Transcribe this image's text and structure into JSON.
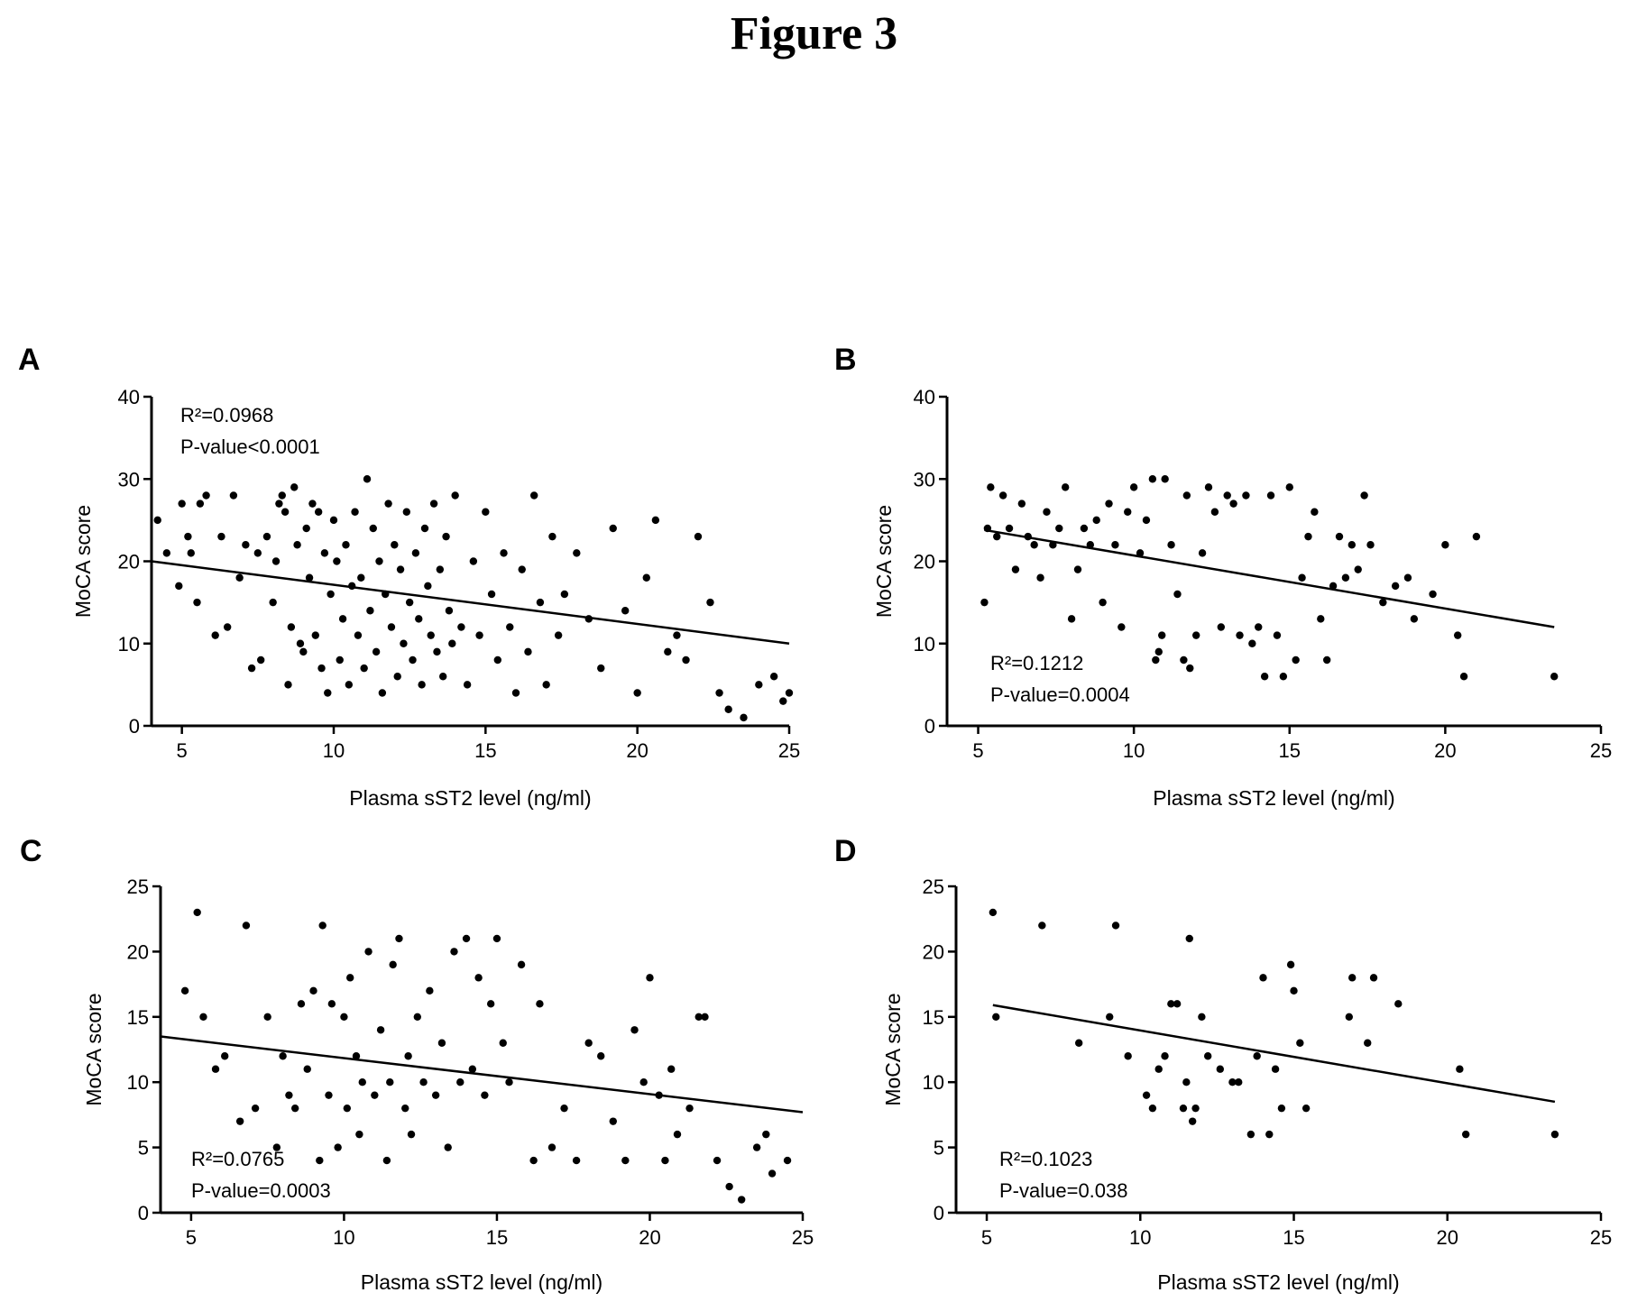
{
  "figure_title": "Figure 3",
  "chart_data": [
    {
      "type": "scatter",
      "panel": "A",
      "xlabel": "Plasma sST2 level (ng/ml)",
      "ylabel": "MoCA score",
      "xlim": [
        4,
        25
      ],
      "ylim": [
        0,
        40
      ],
      "xticks": [
        "5",
        "10",
        "15",
        "20",
        "25"
      ],
      "yticks": [
        "0",
        "10",
        "20",
        "30",
        "40"
      ],
      "annotation": [
        "R²=0.0968",
        "P-value<0.0001"
      ],
      "annotation_position": "top-left",
      "regression": {
        "x": [
          4,
          25
        ],
        "y": [
          20,
          10
        ]
      },
      "points": [
        [
          4.2,
          25
        ],
        [
          4.5,
          21
        ],
        [
          4.9,
          17
        ],
        [
          5.0,
          27
        ],
        [
          5.2,
          23
        ],
        [
          5.3,
          21
        ],
        [
          5.5,
          15
        ],
        [
          5.6,
          27
        ],
        [
          5.8,
          28
        ],
        [
          6.1,
          11
        ],
        [
          6.3,
          23
        ],
        [
          6.5,
          12
        ],
        [
          6.7,
          28
        ],
        [
          6.9,
          18
        ],
        [
          7.1,
          22
        ],
        [
          7.3,
          7
        ],
        [
          7.5,
          21
        ],
        [
          7.6,
          8
        ],
        [
          7.8,
          23
        ],
        [
          8.0,
          15
        ],
        [
          8.1,
          20
        ],
        [
          8.2,
          27
        ],
        [
          8.3,
          28
        ],
        [
          8.4,
          26
        ],
        [
          8.5,
          5
        ],
        [
          8.6,
          12
        ],
        [
          8.7,
          29
        ],
        [
          8.8,
          22
        ],
        [
          8.9,
          10
        ],
        [
          9.0,
          9
        ],
        [
          9.1,
          24
        ],
        [
          9.2,
          18
        ],
        [
          9.3,
          27
        ],
        [
          9.4,
          11
        ],
        [
          9.5,
          26
        ],
        [
          9.6,
          7
        ],
        [
          9.7,
          21
        ],
        [
          9.8,
          4
        ],
        [
          9.9,
          16
        ],
        [
          10.0,
          25
        ],
        [
          10.1,
          20
        ],
        [
          10.2,
          8
        ],
        [
          10.3,
          13
        ],
        [
          10.4,
          22
        ],
        [
          10.5,
          5
        ],
        [
          10.6,
          17
        ],
        [
          10.7,
          26
        ],
        [
          10.8,
          11
        ],
        [
          10.9,
          18
        ],
        [
          11.0,
          7
        ],
        [
          11.1,
          30
        ],
        [
          11.2,
          14
        ],
        [
          11.3,
          24
        ],
        [
          11.4,
          9
        ],
        [
          11.5,
          20
        ],
        [
          11.6,
          4
        ],
        [
          11.7,
          16
        ],
        [
          11.8,
          27
        ],
        [
          11.9,
          12
        ],
        [
          12.0,
          22
        ],
        [
          12.1,
          6
        ],
        [
          12.2,
          19
        ],
        [
          12.3,
          10
        ],
        [
          12.4,
          26
        ],
        [
          12.5,
          15
        ],
        [
          12.6,
          8
        ],
        [
          12.7,
          21
        ],
        [
          12.8,
          13
        ],
        [
          12.9,
          5
        ],
        [
          13.0,
          24
        ],
        [
          13.1,
          17
        ],
        [
          13.2,
          11
        ],
        [
          13.3,
          27
        ],
        [
          13.4,
          9
        ],
        [
          13.5,
          19
        ],
        [
          13.6,
          6
        ],
        [
          13.7,
          23
        ],
        [
          13.8,
          14
        ],
        [
          13.9,
          10
        ],
        [
          14.0,
          28
        ],
        [
          14.2,
          12
        ],
        [
          14.4,
          5
        ],
        [
          14.6,
          20
        ],
        [
          14.8,
          11
        ],
        [
          15.0,
          26
        ],
        [
          15.2,
          16
        ],
        [
          15.4,
          8
        ],
        [
          15.6,
          21
        ],
        [
          15.8,
          12
        ],
        [
          16.0,
          4
        ],
        [
          16.2,
          19
        ],
        [
          16.4,
          9
        ],
        [
          16.6,
          28
        ],
        [
          16.8,
          15
        ],
        [
          17.0,
          5
        ],
        [
          17.2,
          23
        ],
        [
          17.4,
          11
        ],
        [
          17.6,
          16
        ],
        [
          18.0,
          21
        ],
        [
          18.4,
          13
        ],
        [
          18.8,
          7
        ],
        [
          19.2,
          24
        ],
        [
          19.6,
          14
        ],
        [
          20.0,
          4
        ],
        [
          20.3,
          18
        ],
        [
          20.6,
          25
        ],
        [
          21.0,
          9
        ],
        [
          21.3,
          11
        ],
        [
          21.6,
          8
        ],
        [
          22.0,
          23
        ],
        [
          22.4,
          15
        ],
        [
          22.7,
          4
        ],
        [
          23.0,
          2
        ],
        [
          23.5,
          1
        ],
        [
          24.0,
          5
        ],
        [
          24.5,
          6
        ],
        [
          24.8,
          3
        ],
        [
          25.0,
          4
        ]
      ]
    },
    {
      "type": "scatter",
      "panel": "B",
      "xlabel": "Plasma sST2 level (ng/ml)",
      "ylabel": "MoCA score",
      "xlim": [
        4,
        25
      ],
      "ylim": [
        0,
        40
      ],
      "xticks": [
        "5",
        "10",
        "15",
        "20",
        "25"
      ],
      "yticks": [
        "0",
        "10",
        "20",
        "30",
        "40"
      ],
      "annotation": [
        "R²=0.1212",
        "P-value=0.0004"
      ],
      "annotation_position": "bottom-left",
      "regression": {
        "x": [
          5.2,
          23.5
        ],
        "y": [
          23.8,
          12
        ]
      },
      "points": [
        [
          5.2,
          15
        ],
        [
          5.3,
          24
        ],
        [
          5.4,
          29
        ],
        [
          5.6,
          23
        ],
        [
          5.8,
          28
        ],
        [
          6.0,
          24
        ],
        [
          6.2,
          19
        ],
        [
          6.4,
          27
        ],
        [
          6.6,
          23
        ],
        [
          6.8,
          22
        ],
        [
          7.0,
          18
        ],
        [
          7.2,
          26
        ],
        [
          7.4,
          22
        ],
        [
          7.6,
          24
        ],
        [
          7.8,
          29
        ],
        [
          8.0,
          13
        ],
        [
          8.2,
          19
        ],
        [
          8.4,
          24
        ],
        [
          8.6,
          22
        ],
        [
          8.8,
          25
        ],
        [
          9.0,
          15
        ],
        [
          9.2,
          27
        ],
        [
          9.4,
          22
        ],
        [
          9.6,
          12
        ],
        [
          9.8,
          26
        ],
        [
          10.0,
          29
        ],
        [
          10.2,
          21
        ],
        [
          10.4,
          25
        ],
        [
          10.6,
          30
        ],
        [
          10.7,
          8
        ],
        [
          10.8,
          9
        ],
        [
          10.9,
          11
        ],
        [
          11.0,
          30
        ],
        [
          11.2,
          22
        ],
        [
          11.4,
          16
        ],
        [
          11.6,
          8
        ],
        [
          11.7,
          28
        ],
        [
          11.8,
          7
        ],
        [
          12.0,
          11
        ],
        [
          12.2,
          21
        ],
        [
          12.4,
          29
        ],
        [
          12.6,
          26
        ],
        [
          12.8,
          12
        ],
        [
          13.0,
          28
        ],
        [
          13.2,
          27
        ],
        [
          13.4,
          11
        ],
        [
          13.6,
          28
        ],
        [
          13.8,
          10
        ],
        [
          14.0,
          12
        ],
        [
          14.2,
          6
        ],
        [
          14.4,
          28
        ],
        [
          14.6,
          11
        ],
        [
          14.8,
          6
        ],
        [
          15.0,
          29
        ],
        [
          15.2,
          8
        ],
        [
          15.4,
          18
        ],
        [
          15.6,
          23
        ],
        [
          15.8,
          26
        ],
        [
          16.0,
          13
        ],
        [
          16.2,
          8
        ],
        [
          16.4,
          17
        ],
        [
          16.6,
          23
        ],
        [
          16.8,
          18
        ],
        [
          17.0,
          22
        ],
        [
          17.2,
          19
        ],
        [
          17.4,
          28
        ],
        [
          17.6,
          22
        ],
        [
          18.0,
          15
        ],
        [
          18.4,
          17
        ],
        [
          18.8,
          18
        ],
        [
          19.0,
          13
        ],
        [
          19.6,
          16
        ],
        [
          20.0,
          22
        ],
        [
          20.4,
          11
        ],
        [
          20.6,
          6
        ],
        [
          21.0,
          23
        ],
        [
          23.5,
          6
        ]
      ]
    },
    {
      "type": "scatter",
      "panel": "C",
      "xlabel": "Plasma sST2 level (ng/ml)",
      "ylabel": "MoCA score",
      "xlim": [
        4,
        25
      ],
      "ylim": [
        0,
        25
      ],
      "xticks": [
        "5",
        "10",
        "15",
        "20",
        "25"
      ],
      "yticks": [
        "0",
        "5",
        "10",
        "15",
        "20",
        "25"
      ],
      "annotation": [
        "R²=0.0765",
        "P-value=0.0003"
      ],
      "annotation_position": "bottom-left",
      "regression": {
        "x": [
          4,
          25
        ],
        "y": [
          13.5,
          7.7
        ]
      },
      "points": [
        [
          4.8,
          17
        ],
        [
          5.2,
          23
        ],
        [
          5.4,
          15
        ],
        [
          5.8,
          11
        ],
        [
          6.1,
          12
        ],
        [
          6.6,
          7
        ],
        [
          6.8,
          22
        ],
        [
          7.1,
          8
        ],
        [
          7.5,
          15
        ],
        [
          7.8,
          5
        ],
        [
          8.0,
          12
        ],
        [
          8.2,
          9
        ],
        [
          8.4,
          8
        ],
        [
          8.6,
          16
        ],
        [
          8.8,
          11
        ],
        [
          9.0,
          17
        ],
        [
          9.2,
          4
        ],
        [
          9.3,
          22
        ],
        [
          9.5,
          9
        ],
        [
          9.6,
          16
        ],
        [
          9.8,
          5
        ],
        [
          10.0,
          15
        ],
        [
          10.1,
          8
        ],
        [
          10.2,
          18
        ],
        [
          10.4,
          12
        ],
        [
          10.5,
          6
        ],
        [
          10.6,
          10
        ],
        [
          10.8,
          20
        ],
        [
          11.0,
          9
        ],
        [
          11.2,
          14
        ],
        [
          11.4,
          4
        ],
        [
          11.5,
          10
        ],
        [
          11.6,
          19
        ],
        [
          11.8,
          21
        ],
        [
          12.0,
          8
        ],
        [
          12.1,
          12
        ],
        [
          12.2,
          6
        ],
        [
          12.4,
          15
        ],
        [
          12.6,
          10
        ],
        [
          12.8,
          17
        ],
        [
          13.0,
          9
        ],
        [
          13.2,
          13
        ],
        [
          13.4,
          5
        ],
        [
          13.6,
          20
        ],
        [
          13.8,
          10
        ],
        [
          14.0,
          21
        ],
        [
          14.2,
          11
        ],
        [
          14.4,
          18
        ],
        [
          14.6,
          9
        ],
        [
          14.8,
          16
        ],
        [
          15.0,
          21
        ],
        [
          15.2,
          13
        ],
        [
          15.4,
          10
        ],
        [
          15.8,
          19
        ],
        [
          16.2,
          4
        ],
        [
          16.4,
          16
        ],
        [
          16.8,
          5
        ],
        [
          17.2,
          8
        ],
        [
          17.6,
          4
        ],
        [
          18.0,
          13
        ],
        [
          18.4,
          12
        ],
        [
          18.8,
          7
        ],
        [
          19.2,
          4
        ],
        [
          19.5,
          14
        ],
        [
          19.8,
          10
        ],
        [
          20.0,
          18
        ],
        [
          20.3,
          9
        ],
        [
          20.5,
          4
        ],
        [
          20.7,
          11
        ],
        [
          20.9,
          6
        ],
        [
          21.3,
          8
        ],
        [
          21.6,
          15
        ],
        [
          21.8,
          15
        ],
        [
          22.2,
          4
        ],
        [
          22.6,
          2
        ],
        [
          23.0,
          1
        ],
        [
          23.5,
          5
        ],
        [
          23.8,
          6
        ],
        [
          24.0,
          3
        ],
        [
          24.5,
          4
        ]
      ]
    },
    {
      "type": "scatter",
      "panel": "D",
      "xlabel": "Plasma sST2 level (ng/ml)",
      "ylabel": "MoCA score",
      "xlim": [
        4,
        25
      ],
      "ylim": [
        0,
        25
      ],
      "xticks": [
        "5",
        "10",
        "15",
        "20",
        "25"
      ],
      "yticks": [
        "0",
        "5",
        "10",
        "15",
        "20",
        "25"
      ],
      "annotation": [
        "R²=0.1023",
        "P-value=0.038"
      ],
      "annotation_position": "bottom-left",
      "regression": {
        "x": [
          5.2,
          23.5
        ],
        "y": [
          15.9,
          8.5
        ]
      },
      "points": [
        [
          5.2,
          23
        ],
        [
          5.3,
          15
        ],
        [
          6.8,
          22
        ],
        [
          8.0,
          13
        ],
        [
          9.0,
          15
        ],
        [
          9.2,
          22
        ],
        [
          9.6,
          12
        ],
        [
          10.2,
          9
        ],
        [
          10.4,
          8
        ],
        [
          10.6,
          11
        ],
        [
          10.8,
          12
        ],
        [
          11.0,
          16
        ],
        [
          11.2,
          16
        ],
        [
          11.4,
          8
        ],
        [
          11.5,
          10
        ],
        [
          11.6,
          21
        ],
        [
          11.7,
          7
        ],
        [
          11.8,
          8
        ],
        [
          12.0,
          15
        ],
        [
          12.2,
          12
        ],
        [
          12.6,
          11
        ],
        [
          13.0,
          10
        ],
        [
          13.2,
          10
        ],
        [
          13.6,
          6
        ],
        [
          13.8,
          12
        ],
        [
          14.0,
          18
        ],
        [
          14.2,
          6
        ],
        [
          14.4,
          11
        ],
        [
          14.6,
          8
        ],
        [
          14.9,
          19
        ],
        [
          15.0,
          17
        ],
        [
          15.2,
          13
        ],
        [
          15.4,
          8
        ],
        [
          16.8,
          15
        ],
        [
          16.9,
          18
        ],
        [
          17.4,
          13
        ],
        [
          17.6,
          18
        ],
        [
          18.4,
          16
        ],
        [
          20.4,
          11
        ],
        [
          20.6,
          6
        ],
        [
          23.5,
          6
        ]
      ]
    }
  ]
}
